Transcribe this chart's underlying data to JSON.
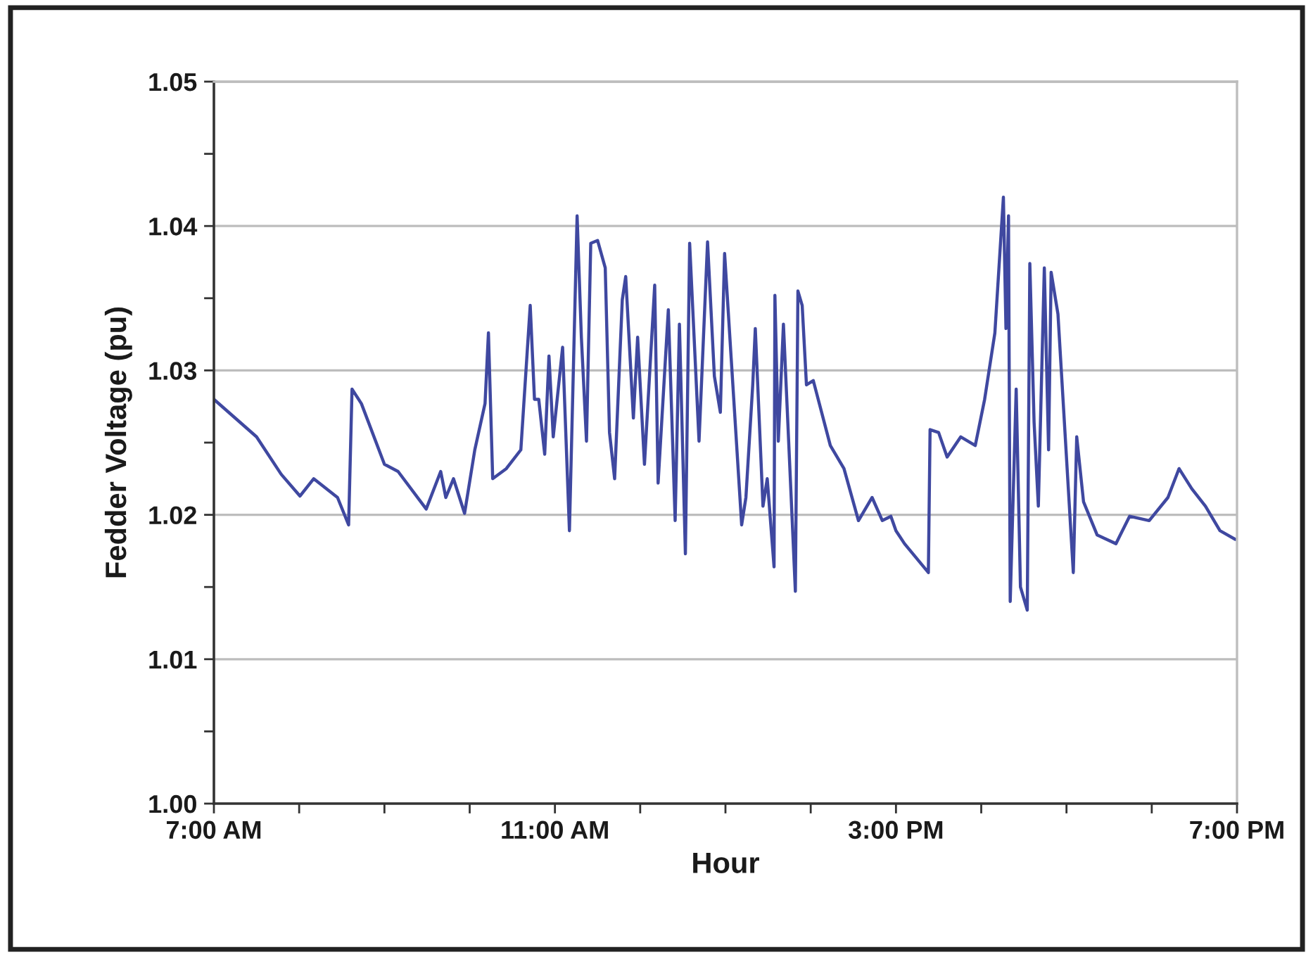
{
  "chart_data": {
    "type": "line",
    "xlabel": "Hour",
    "ylabel": "Fedder Voltage (pu)",
    "x": [
      7.0,
      7.5,
      7.79,
      8.01,
      8.17,
      8.45,
      8.58,
      8.62,
      8.73,
      9.0,
      9.16,
      9.49,
      9.66,
      9.72,
      9.81,
      9.94,
      10.06,
      10.18,
      10.22,
      10.27,
      10.43,
      10.6,
      10.71,
      10.76,
      10.81,
      10.88,
      10.93,
      10.98,
      11.09,
      11.17,
      11.26,
      11.31,
      11.37,
      11.42,
      11.5,
      11.59,
      11.64,
      11.7,
      11.79,
      11.83,
      11.92,
      11.97,
      12.05,
      12.17,
      12.21,
      12.33,
      12.41,
      12.46,
      12.53,
      12.58,
      12.69,
      12.79,
      12.87,
      12.94,
      12.99,
      13.19,
      13.24,
      13.32,
      13.35,
      13.44,
      13.49,
      13.57,
      13.58,
      13.62,
      13.68,
      13.82,
      13.85,
      13.9,
      13.95,
      14.03,
      14.23,
      14.39,
      14.56,
      14.72,
      14.84,
      14.94,
      15.0,
      15.1,
      15.38,
      15.4,
      15.5,
      15.6,
      15.76,
      15.93,
      16.04,
      16.16,
      16.26,
      16.29,
      16.32,
      16.34,
      16.41,
      16.46,
      16.54,
      16.57,
      16.62,
      16.67,
      16.74,
      16.79,
      16.82,
      16.9,
      17.08,
      17.12,
      17.2,
      17.36,
      17.58,
      17.74,
      17.97,
      18.19,
      18.32,
      18.47,
      18.63,
      18.8,
      18.98
    ],
    "series": [
      {
        "color": "#3f48a0",
        "values": [
          1.028,
          1.0254,
          1.0228,
          1.0213,
          1.0225,
          1.0212,
          1.0193,
          1.0287,
          1.0277,
          1.0235,
          1.023,
          1.0204,
          1.023,
          1.0212,
          1.0225,
          1.0201,
          1.0245,
          1.0277,
          1.0326,
          1.0225,
          1.0232,
          1.0245,
          1.0345,
          1.028,
          1.028,
          1.0242,
          1.031,
          1.0254,
          1.0316,
          1.0189,
          1.0407,
          1.0323,
          1.0251,
          1.0388,
          1.039,
          1.0371,
          1.0257,
          1.0225,
          1.0349,
          1.0365,
          1.0267,
          1.0323,
          1.0235,
          1.0359,
          1.0222,
          1.0342,
          1.0196,
          1.0332,
          1.0173,
          1.0388,
          1.0251,
          1.0389,
          1.0296,
          1.0271,
          1.0381,
          1.0193,
          1.0212,
          1.029,
          1.0329,
          1.0206,
          1.0225,
          1.0164,
          1.0352,
          1.0251,
          1.0332,
          1.0147,
          1.0355,
          1.0345,
          1.029,
          1.0293,
          1.0248,
          1.0232,
          1.0196,
          1.0212,
          1.0196,
          1.0199,
          1.0189,
          1.018,
          1.016,
          1.0259,
          1.0257,
          1.024,
          1.0254,
          1.0248,
          1.028,
          1.0326,
          1.042,
          1.0329,
          1.0407,
          1.014,
          1.0287,
          1.015,
          1.0134,
          1.0374,
          1.0264,
          1.0206,
          1.0371,
          1.0245,
          1.0368,
          1.0339,
          1.016,
          1.0254,
          1.0209,
          1.0186,
          1.018,
          1.0199,
          1.0196,
          1.0212,
          1.0232,
          1.0218,
          1.0206,
          1.0189,
          1.0183
        ]
      }
    ],
    "xlim": [
      7,
      19
    ],
    "xticks": [
      {
        "value": 7,
        "label": "7:00 AM"
      },
      {
        "value": 8,
        "label": null
      },
      {
        "value": 9,
        "label": null
      },
      {
        "value": 10,
        "label": null
      },
      {
        "value": 11,
        "label": "11:00 AM"
      },
      {
        "value": 12,
        "label": null
      },
      {
        "value": 13,
        "label": null
      },
      {
        "value": 14,
        "label": null
      },
      {
        "value": 15,
        "label": "3:00 PM"
      },
      {
        "value": 16,
        "label": null
      },
      {
        "value": 17,
        "label": null
      },
      {
        "value": 18,
        "label": null
      },
      {
        "value": 19,
        "label": "7:00 PM"
      }
    ],
    "ylim": [
      1.0,
      1.05
    ],
    "yticks": [
      {
        "value": 1.0,
        "label": "1.00"
      },
      {
        "value": 1.005,
        "label": null
      },
      {
        "value": 1.01,
        "label": "1.01"
      },
      {
        "value": 1.015,
        "label": null
      },
      {
        "value": 1.02,
        "label": "1.02"
      },
      {
        "value": 1.025,
        "label": null
      },
      {
        "value": 1.03,
        "label": "1.03"
      },
      {
        "value": 1.035,
        "label": null
      },
      {
        "value": 1.04,
        "label": "1.04"
      },
      {
        "value": 1.045,
        "label": null
      },
      {
        "value": 1.05,
        "label": "1.05"
      }
    ],
    "grid": "y",
    "marker": "none",
    "line_style": "solid"
  }
}
